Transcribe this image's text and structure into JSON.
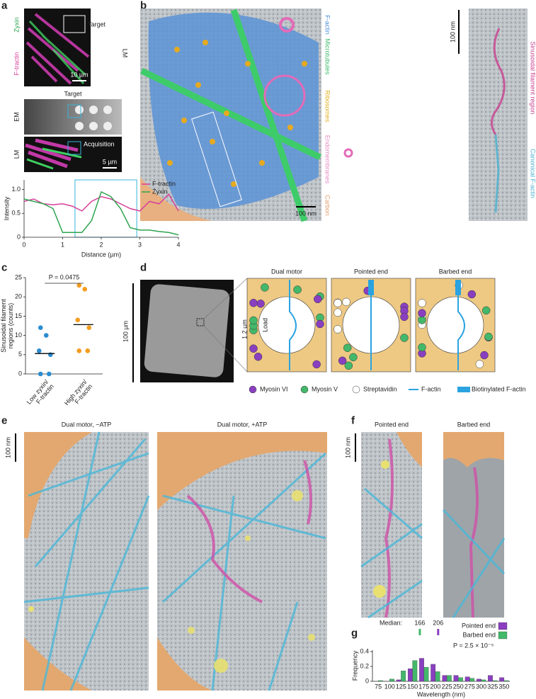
{
  "figure": {
    "panel_labels": [
      "a",
      "b",
      "c",
      "d",
      "e",
      "f",
      "g"
    ],
    "a": {
      "zyxin": "Zyxin",
      "ftractin": "F-tractin",
      "target": "Target",
      "scale_top": "10 µm",
      "lm": "LM",
      "target2": "Target",
      "em": "EM",
      "lm2": "LM",
      "acquisition": "Acquisition",
      "scale_bottom": "5 µm"
    },
    "b": {
      "labels": [
        {
          "text": "F-actin",
          "color": "#4a8fd8"
        },
        {
          "text": "Microtubules",
          "color": "#3dbb6a"
        },
        {
          "text": "Ribosomes",
          "color": "#e0b020"
        },
        {
          "text": "Endomembranes",
          "color": "#e58cc4"
        },
        {
          "text": "Carbon",
          "color": "#e0a070"
        }
      ],
      "scale": "100 nm",
      "strip_scale": "100 nm",
      "sinusoidal": {
        "text": "Sinusoidal filament region",
        "color": "#c8408f"
      },
      "canonical": {
        "text": "Canonical F-actin",
        "color": "#4ab0d0"
      }
    },
    "d": {
      "scale_image": "100 µm",
      "titles": [
        "Dual motor",
        "Pointed end",
        "Barbed end"
      ],
      "scale_diagram": "1.2 µm",
      "load": "Load",
      "legend": [
        "Myosin VI",
        "Myosin V",
        "Streptavidin",
        "F-actin",
        "Biotinylated F-actin"
      ]
    },
    "e": {
      "titles": [
        "Dual motor, −ATP",
        "Dual motor, +ATP"
      ],
      "scale": "100 nm"
    },
    "f": {
      "titles": [
        "Pointed end",
        "Barbed end"
      ],
      "scale": "100 nm"
    }
  },
  "chart_data": [
    {
      "type": "line",
      "x": [
        0,
        0.25,
        0.5,
        0.75,
        1,
        1.25,
        1.5,
        1.75,
        2,
        2.25,
        2.5,
        2.75,
        3,
        3.25,
        3.5,
        3.75,
        4
      ],
      "series": [
        {
          "name": "F-tractin",
          "color": "#d6409a",
          "values": [
            0.75,
            0.8,
            0.7,
            0.68,
            0.7,
            0.65,
            0.55,
            0.75,
            0.85,
            0.8,
            0.7,
            0.6,
            0.55,
            0.75,
            0.7,
            0.9,
            0.55
          ]
        },
        {
          "name": "Zyxin",
          "color": "#2ea44f",
          "values": [
            0.8,
            0.75,
            0.7,
            0.6,
            0.1,
            0.1,
            0.1,
            0.35,
            0.95,
            0.85,
            0.6,
            0.2,
            0.15,
            0.15,
            0.12,
            0.1,
            0.05
          ]
        }
      ],
      "xlim": [
        0,
        4
      ],
      "ylim": [
        0,
        1.2
      ],
      "xticks": [
        0,
        1,
        2,
        3,
        4
      ],
      "yticks": [
        0,
        0.5,
        {
          "value": 1,
          "label": "1.0"
        }
      ],
      "x_label": "Distance (µm)",
      "y_label": "Intensity",
      "legend": "upper right"
    },
    {
      "type": "strip",
      "categories": [
        "Low zyxin/\nF-tractin",
        "High zyxin/\nF-tractin"
      ],
      "values": [
        [
          12,
          10,
          6,
          5,
          0,
          0
        ],
        [
          23,
          22,
          14,
          12,
          6,
          6
        ]
      ],
      "colors": [
        "#2b8cd0",
        "#f39c1e"
      ],
      "lines": [
        5.3,
        12.8
      ],
      "ylim": [
        0,
        25
      ],
      "yticks": [
        0,
        5,
        10,
        15,
        20,
        25
      ],
      "y_label": "Sinusoidal filament\nregions (counts)",
      "annotation": "P = 0.0475"
    },
    {
      "type": "bar",
      "categories": [
        "75",
        "100",
        "125",
        "150",
        "175",
        "200",
        "225",
        "250",
        "275",
        "300",
        "325",
        "350"
      ],
      "series": [
        {
          "name": "Pointed end",
          "color": "#8a3fc0",
          "values": [
            0,
            0,
            0.02,
            0.17,
            0.31,
            0.23,
            0.08,
            0.08,
            0.06,
            0.03,
            0.08,
            0.05
          ]
        },
        {
          "name": "Barbed end",
          "color": "#43b86a",
          "values": [
            0.01,
            0.03,
            0.14,
            0.28,
            0.19,
            0.13,
            0.08,
            0.05,
            0.04,
            0.02,
            0.01,
            0.01
          ]
        }
      ],
      "ylim": [
        0,
        0.42
      ],
      "yticks": [
        0,
        0.2,
        0.4
      ],
      "x_label": "Wavelength (nm)",
      "y_label": "Frequency",
      "legend": "upper right",
      "median_label": "Median:",
      "medians": [
        166,
        206
      ],
      "annotation": "P = 2.5 × 10⁻⁵"
    }
  ]
}
